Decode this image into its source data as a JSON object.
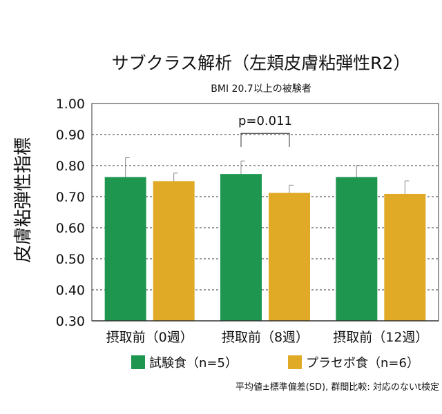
{
  "chart_data": {
    "type": "bar",
    "title": "サブクラス解析（左頬皮膚粘弾性R2）",
    "subtitle": "BMI 20.7以上の被験者",
    "ylabel": "皮膚粘弾性指標",
    "xlabel": "",
    "ylim": [
      0.3,
      1.0
    ],
    "yticks": [
      "1.00",
      "0.90",
      "0.80",
      "0.70",
      "0.60",
      "0.50",
      "0.40",
      "0.30"
    ],
    "ytick_values": [
      1.0,
      0.9,
      0.8,
      0.7,
      0.6,
      0.5,
      0.4,
      0.3
    ],
    "grid": true,
    "categories": [
      "摂取前（0週）",
      "摂取前（8週）",
      "摂取前（12週）"
    ],
    "series": [
      {
        "name": "試験食（n=5）",
        "color": "#1e9650",
        "values": [
          0.763,
          0.773,
          0.763
        ],
        "errors": [
          0.063,
          0.042,
          0.038
        ]
      },
      {
        "name": "プラセボ食（n=6）",
        "color": "#e0aa27",
        "values": [
          0.75,
          0.712,
          0.709
        ],
        "errors": [
          0.026,
          0.025,
          0.042
        ]
      }
    ],
    "annotation": {
      "text": "p=0.011",
      "category_index": 1
    },
    "legend_position": "bottom",
    "footnote": "平均値±標準偏差(SD), 群間比較: 対応のないt検定"
  }
}
